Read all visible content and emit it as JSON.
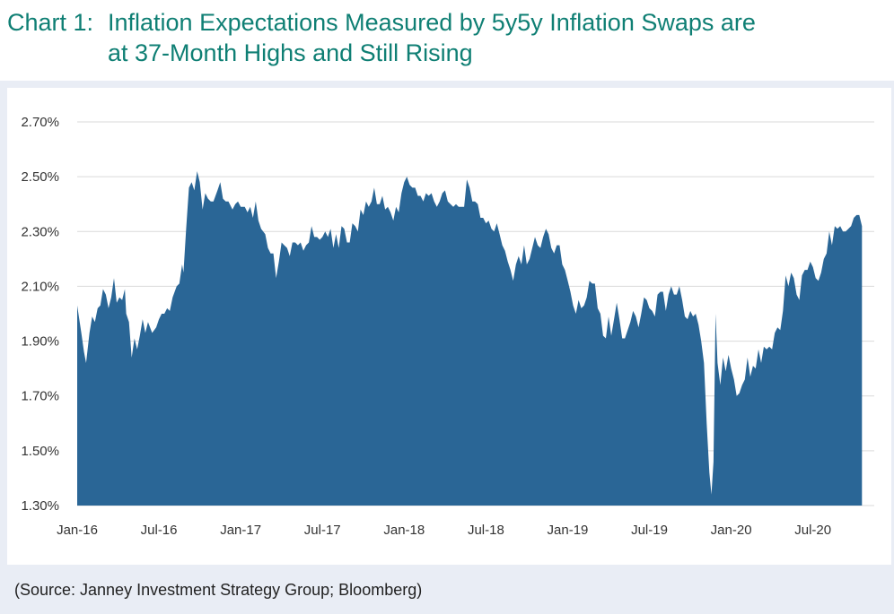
{
  "title": {
    "label": "Chart 1:",
    "line1": "Inflation Expectations Measured by 5y5y Inflation Swaps are",
    "line2": "at 37-Month Highs and Still Rising"
  },
  "source": "(Source: Janney Investment Strategy Group; Bloomberg)",
  "colors": {
    "title": "#0f7f74",
    "area": "#2a6696",
    "frame": "#e9edf5",
    "grid": "#d9d9d9"
  },
  "chart_data": {
    "type": "area",
    "title": "Inflation Expectations Measured by 5y5y Inflation Swaps",
    "xlabel": "",
    "ylabel": "",
    "ylim": [
      1.3,
      2.7
    ],
    "yticks": [
      1.3,
      1.5,
      1.7,
      1.9,
      2.1,
      2.3,
      2.5,
      2.7
    ],
    "ytick_labels": [
      "1.30%",
      "1.50%",
      "1.70%",
      "1.90%",
      "2.10%",
      "2.30%",
      "2.50%",
      "2.70%"
    ],
    "xticks": [
      0,
      6,
      12,
      18,
      24,
      30,
      36,
      42,
      48,
      54
    ],
    "xtick_labels": [
      "Jan-16",
      "Jul-16",
      "Jan-17",
      "Jul-17",
      "Jan-18",
      "Jul-18",
      "Jan-19",
      "Jul-19",
      "Jan-20",
      "Jul-20"
    ],
    "grid": true,
    "x_unit": "months since Jan-2016",
    "x_range": [
      0,
      58.5
    ],
    "series": [
      {
        "name": "5y5y Inflation Swap",
        "points": [
          [
            0.0,
            2.03
          ],
          [
            0.3,
            1.93
          ],
          [
            0.5,
            1.86
          ],
          [
            0.65,
            1.82
          ],
          [
            0.9,
            1.93
          ],
          [
            1.1,
            1.99
          ],
          [
            1.3,
            1.97
          ],
          [
            1.5,
            2.02
          ],
          [
            1.7,
            2.03
          ],
          [
            1.9,
            2.09
          ],
          [
            2.1,
            2.07
          ],
          [
            2.3,
            2.02
          ],
          [
            2.5,
            2.06
          ],
          [
            2.7,
            2.13
          ],
          [
            2.9,
            2.04
          ],
          [
            3.1,
            2.06
          ],
          [
            3.3,
            2.05
          ],
          [
            3.5,
            2.09
          ],
          [
            3.6,
            2.0
          ],
          [
            3.8,
            1.97
          ],
          [
            4.0,
            1.84
          ],
          [
            4.2,
            1.91
          ],
          [
            4.4,
            1.87
          ],
          [
            4.6,
            1.92
          ],
          [
            4.8,
            1.98
          ],
          [
            5.0,
            1.93
          ],
          [
            5.2,
            1.97
          ],
          [
            5.5,
            1.93
          ],
          [
            5.8,
            1.95
          ],
          [
            6.0,
            1.98
          ],
          [
            6.2,
            2.0
          ],
          [
            6.4,
            2.0
          ],
          [
            6.6,
            2.02
          ],
          [
            6.8,
            2.01
          ],
          [
            7.0,
            2.06
          ],
          [
            7.3,
            2.1
          ],
          [
            7.5,
            2.11
          ],
          [
            7.7,
            2.18
          ],
          [
            7.8,
            2.15
          ],
          [
            8.0,
            2.31
          ],
          [
            8.2,
            2.46
          ],
          [
            8.4,
            2.48
          ],
          [
            8.6,
            2.45
          ],
          [
            8.8,
            2.52
          ],
          [
            9.0,
            2.48
          ],
          [
            9.2,
            2.38
          ],
          [
            9.4,
            2.44
          ],
          [
            9.6,
            2.42
          ],
          [
            9.8,
            2.41
          ],
          [
            10.0,
            2.41
          ],
          [
            10.3,
            2.45
          ],
          [
            10.5,
            2.48
          ],
          [
            10.7,
            2.42
          ],
          [
            10.9,
            2.41
          ],
          [
            11.1,
            2.41
          ],
          [
            11.4,
            2.38
          ],
          [
            11.6,
            2.4
          ],
          [
            11.8,
            2.41
          ],
          [
            12.0,
            2.39
          ],
          [
            12.3,
            2.39
          ],
          [
            12.5,
            2.37
          ],
          [
            12.7,
            2.39
          ],
          [
            12.9,
            2.35
          ],
          [
            13.1,
            2.41
          ],
          [
            13.3,
            2.34
          ],
          [
            13.5,
            2.31
          ],
          [
            13.8,
            2.29
          ],
          [
            14.0,
            2.24
          ],
          [
            14.2,
            2.22
          ],
          [
            14.4,
            2.22
          ],
          [
            14.6,
            2.13
          ],
          [
            14.8,
            2.19
          ],
          [
            15.0,
            2.26
          ],
          [
            15.2,
            2.25
          ],
          [
            15.4,
            2.24
          ],
          [
            15.6,
            2.21
          ],
          [
            15.8,
            2.26
          ],
          [
            16.0,
            2.26
          ],
          [
            16.2,
            2.25
          ],
          [
            16.4,
            2.26
          ],
          [
            16.6,
            2.23
          ],
          [
            16.8,
            2.25
          ],
          [
            17.0,
            2.26
          ],
          [
            17.2,
            2.32
          ],
          [
            17.4,
            2.28
          ],
          [
            17.6,
            2.28
          ],
          [
            17.8,
            2.27
          ],
          [
            18.0,
            2.28
          ],
          [
            18.2,
            2.3
          ],
          [
            18.4,
            2.28
          ],
          [
            18.6,
            2.31
          ],
          [
            18.8,
            2.24
          ],
          [
            19.0,
            2.29
          ],
          [
            19.2,
            2.24
          ],
          [
            19.4,
            2.32
          ],
          [
            19.6,
            2.31
          ],
          [
            19.8,
            2.26
          ],
          [
            20.0,
            2.26
          ],
          [
            20.2,
            2.33
          ],
          [
            20.4,
            2.32
          ],
          [
            20.6,
            2.3
          ],
          [
            20.8,
            2.38
          ],
          [
            21.0,
            2.36
          ],
          [
            21.2,
            2.41
          ],
          [
            21.4,
            2.39
          ],
          [
            21.6,
            2.41
          ],
          [
            21.8,
            2.46
          ],
          [
            22.0,
            2.4
          ],
          [
            22.2,
            2.4
          ],
          [
            22.4,
            2.43
          ],
          [
            22.6,
            2.38
          ],
          [
            22.8,
            2.39
          ],
          [
            23.0,
            2.37
          ],
          [
            23.2,
            2.34
          ],
          [
            23.4,
            2.39
          ],
          [
            23.6,
            2.37
          ],
          [
            23.8,
            2.44
          ],
          [
            24.0,
            2.48
          ],
          [
            24.2,
            2.5
          ],
          [
            24.4,
            2.47
          ],
          [
            24.6,
            2.46
          ],
          [
            24.8,
            2.46
          ],
          [
            25.0,
            2.43
          ],
          [
            25.2,
            2.43
          ],
          [
            25.4,
            2.41
          ],
          [
            25.6,
            2.44
          ],
          [
            25.8,
            2.43
          ],
          [
            26.0,
            2.44
          ],
          [
            26.2,
            2.41
          ],
          [
            26.4,
            2.39
          ],
          [
            26.6,
            2.41
          ],
          [
            26.8,
            2.44
          ],
          [
            27.0,
            2.45
          ],
          [
            27.2,
            2.41
          ],
          [
            27.4,
            2.4
          ],
          [
            27.6,
            2.39
          ],
          [
            27.8,
            2.4
          ],
          [
            28.0,
            2.39
          ],
          [
            28.2,
            2.39
          ],
          [
            28.4,
            2.39
          ],
          [
            28.6,
            2.49
          ],
          [
            28.8,
            2.46
          ],
          [
            29.0,
            2.41
          ],
          [
            29.2,
            2.41
          ],
          [
            29.4,
            2.4
          ],
          [
            29.6,
            2.35
          ],
          [
            29.8,
            2.35
          ],
          [
            30.0,
            2.33
          ],
          [
            30.2,
            2.34
          ],
          [
            30.4,
            2.31
          ],
          [
            30.6,
            2.3
          ],
          [
            30.8,
            2.33
          ],
          [
            31.0,
            2.29
          ],
          [
            31.2,
            2.25
          ],
          [
            31.4,
            2.23
          ],
          [
            31.6,
            2.19
          ],
          [
            31.8,
            2.16
          ],
          [
            32.0,
            2.12
          ],
          [
            32.2,
            2.18
          ],
          [
            32.4,
            2.21
          ],
          [
            32.6,
            2.18
          ],
          [
            32.8,
            2.25
          ],
          [
            33.0,
            2.18
          ],
          [
            33.2,
            2.2
          ],
          [
            33.4,
            2.24
          ],
          [
            33.6,
            2.28
          ],
          [
            33.8,
            2.25
          ],
          [
            34.0,
            2.24
          ],
          [
            34.2,
            2.28
          ],
          [
            34.4,
            2.31
          ],
          [
            34.6,
            2.29
          ],
          [
            34.8,
            2.24
          ],
          [
            35.0,
            2.22
          ],
          [
            35.2,
            2.25
          ],
          [
            35.4,
            2.25
          ],
          [
            35.6,
            2.18
          ],
          [
            35.8,
            2.16
          ],
          [
            36.0,
            2.12
          ],
          [
            36.2,
            2.08
          ],
          [
            36.4,
            2.03
          ],
          [
            36.6,
            2.0
          ],
          [
            36.8,
            2.05
          ],
          [
            37.0,
            2.02
          ],
          [
            37.2,
            2.03
          ],
          [
            37.4,
            2.06
          ],
          [
            37.6,
            2.12
          ],
          [
            37.8,
            2.11
          ],
          [
            38.0,
            2.11
          ],
          [
            38.2,
            2.02
          ],
          [
            38.4,
            2.0
          ],
          [
            38.6,
            1.92
          ],
          [
            38.8,
            1.91
          ],
          [
            39.0,
            1.99
          ],
          [
            39.2,
            1.92
          ],
          [
            39.4,
            1.98
          ],
          [
            39.6,
            2.04
          ],
          [
            39.8,
            1.98
          ],
          [
            40.0,
            1.91
          ],
          [
            40.2,
            1.91
          ],
          [
            40.4,
            1.94
          ],
          [
            40.6,
            1.97
          ],
          [
            40.8,
            2.01
          ],
          [
            41.0,
            1.99
          ],
          [
            41.2,
            1.95
          ],
          [
            41.4,
            2.0
          ],
          [
            41.6,
            2.06
          ],
          [
            41.8,
            2.05
          ],
          [
            42.0,
            2.02
          ],
          [
            42.2,
            2.01
          ],
          [
            42.4,
            1.99
          ],
          [
            42.6,
            2.07
          ],
          [
            42.8,
            2.08
          ],
          [
            43.0,
            2.08
          ],
          [
            43.2,
            2.01
          ],
          [
            43.4,
            2.07
          ],
          [
            43.6,
            2.1
          ],
          [
            43.8,
            2.07
          ],
          [
            44.0,
            2.07
          ],
          [
            44.2,
            2.1
          ],
          [
            44.4,
            2.05
          ],
          [
            44.6,
            1.99
          ],
          [
            44.8,
            1.98
          ],
          [
            45.0,
            2.01
          ],
          [
            45.2,
            1.99
          ],
          [
            45.4,
            2.0
          ],
          [
            45.6,
            1.96
          ],
          [
            45.8,
            1.9
          ],
          [
            46.0,
            1.82
          ],
          [
            46.2,
            1.6
          ],
          [
            46.4,
            1.42
          ],
          [
            46.55,
            1.34
          ],
          [
            46.7,
            1.46
          ],
          [
            46.85,
            2.0
          ],
          [
            47.0,
            1.82
          ],
          [
            47.2,
            1.74
          ],
          [
            47.4,
            1.84
          ],
          [
            47.6,
            1.79
          ],
          [
            47.8,
            1.85
          ],
          [
            48.0,
            1.8
          ],
          [
            48.2,
            1.76
          ],
          [
            48.4,
            1.7
          ],
          [
            48.6,
            1.71
          ],
          [
            48.8,
            1.74
          ],
          [
            49.0,
            1.76
          ],
          [
            49.2,
            1.84
          ],
          [
            49.4,
            1.77
          ],
          [
            49.6,
            1.81
          ],
          [
            49.8,
            1.8
          ],
          [
            50.0,
            1.87
          ],
          [
            50.2,
            1.82
          ],
          [
            50.4,
            1.88
          ],
          [
            50.6,
            1.87
          ],
          [
            50.8,
            1.88
          ],
          [
            51.0,
            1.87
          ],
          [
            51.2,
            1.93
          ],
          [
            51.4,
            1.95
          ],
          [
            51.6,
            1.94
          ],
          [
            51.8,
            2.01
          ],
          [
            52.0,
            2.14
          ],
          [
            52.2,
            2.1
          ],
          [
            52.4,
            2.15
          ],
          [
            52.6,
            2.13
          ],
          [
            52.8,
            2.07
          ],
          [
            53.0,
            2.05
          ],
          [
            53.2,
            2.14
          ],
          [
            53.4,
            2.16
          ],
          [
            53.6,
            2.16
          ],
          [
            53.8,
            2.19
          ],
          [
            54.0,
            2.17
          ],
          [
            54.2,
            2.13
          ],
          [
            54.4,
            2.12
          ],
          [
            54.6,
            2.15
          ],
          [
            54.8,
            2.2
          ],
          [
            55.0,
            2.22
          ],
          [
            55.2,
            2.3
          ],
          [
            55.4,
            2.25
          ],
          [
            55.6,
            2.32
          ],
          [
            55.8,
            2.31
          ],
          [
            56.0,
            2.32
          ],
          [
            56.2,
            2.3
          ],
          [
            56.4,
            2.3
          ],
          [
            56.6,
            2.31
          ],
          [
            56.8,
            2.32
          ],
          [
            57.0,
            2.35
          ],
          [
            57.2,
            2.36
          ],
          [
            57.4,
            2.36
          ],
          [
            57.6,
            2.32
          ]
        ]
      }
    ]
  }
}
